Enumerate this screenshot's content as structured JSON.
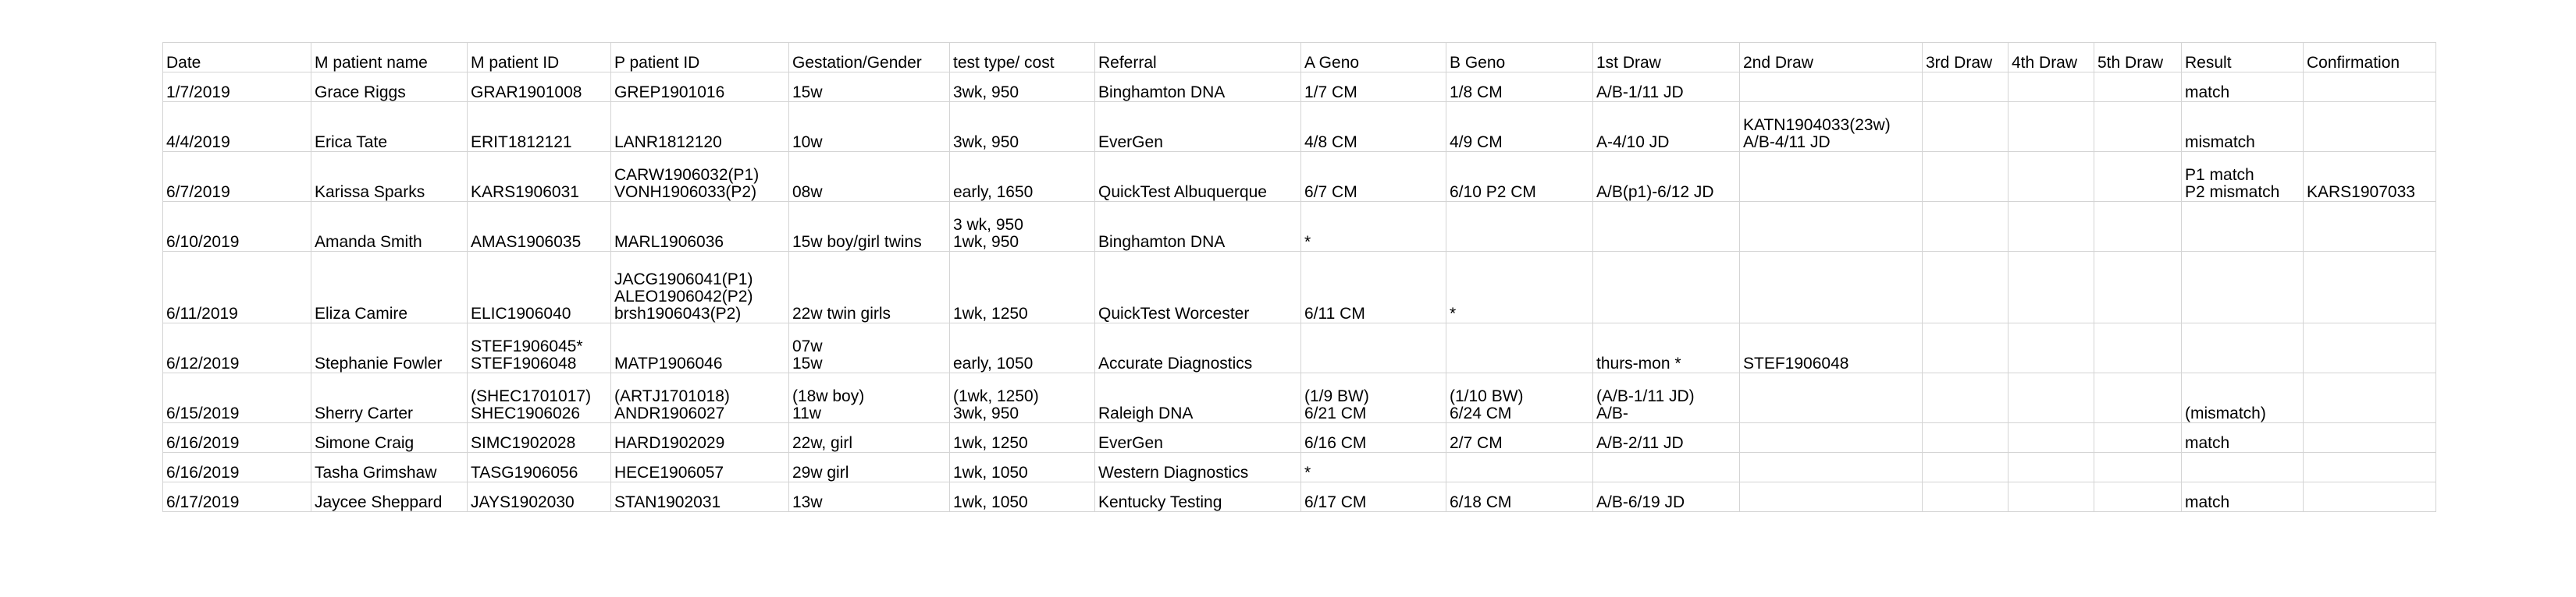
{
  "table": {
    "headers": [
      "Date",
      "M patient name",
      "M patient ID",
      "P patient ID",
      "Gestation/Gender",
      "test type/ cost",
      "Referral",
      "A Geno",
      "B Geno",
      "1st Draw",
      "2nd Draw",
      "3rd Draw",
      "4th Draw",
      "5th Draw",
      "Result",
      "Confirmation"
    ],
    "rows": [
      [
        "1/7/2019",
        "Grace Riggs",
        "GRAR1901008",
        "GREP1901016",
        "15w",
        "3wk, 950",
        "Binghamton DNA",
        "1/7 CM",
        "1/8 CM",
        "A/B-1/11 JD",
        "",
        "",
        "",
        "",
        "match",
        ""
      ],
      [
        "4/4/2019",
        "Erica Tate",
        "ERIT1812121",
        "LANR1812120\n",
        "10w",
        "3wk, 950",
        "EverGen",
        "4/8 CM",
        "4/9 CM",
        "A-4/10 JD",
        "KATN1904033(23w)\nA/B-4/11 JD",
        "",
        "",
        "",
        "mismatch",
        ""
      ],
      [
        "6/7/2019",
        "Karissa Sparks",
        "KARS1906031",
        "CARW1906032(P1)\nVONH1906033(P2)",
        "08w",
        "early, 1650",
        "QuickTest Albuquerque",
        "6/7 CM",
        "6/10 P2 CM",
        "A/B(p1)-6/12 JD\n",
        "",
        "",
        "",
        "",
        "P1 match\nP2 mismatch",
        "KARS1907033"
      ],
      [
        "6/10/2019",
        "Amanda Smith",
        "AMAS1906035",
        "MARL1906036",
        "15w boy/girl twins",
        "3 wk, 950\n1wk, 950",
        "Binghamton DNA",
        "*",
        "",
        "",
        "",
        "",
        "",
        "",
        "",
        ""
      ],
      [
        "6/11/2019",
        "Eliza Camire",
        "ELIC1906040",
        "JACG1906041(P1)\nALEO1906042(P2)\nbrsh1906043(P2)",
        "22w twin girls",
        "1wk, 1250",
        "QuickTest Worcester",
        "6/11 CM",
        "*",
        "",
        "",
        "",
        "",
        "",
        "",
        ""
      ],
      [
        "6/12/2019",
        "Stephanie Fowler",
        "STEF1906045*\nSTEF1906048",
        "MATP1906046",
        "07w\n15w",
        "early, 1050",
        "Accurate Diagnostics",
        "",
        "",
        "thurs-mon *",
        "STEF1906048",
        "",
        "",
        "",
        "",
        ""
      ],
      [
        "6/15/2019",
        "Sherry Carter",
        "(SHEC1701017)\nSHEC1906026",
        "(ARTJ1701018)\nANDR1906027",
        "(18w boy)\n11w",
        "(1wk, 1250)\n3wk, 950",
        "Raleigh DNA",
        "(1/9 BW)\n6/21 CM",
        "(1/10 BW)\n6/24 CM",
        "(A/B-1/11 JD)\nA/B-",
        "",
        "",
        "",
        "",
        "(mismatch)",
        ""
      ],
      [
        "6/16/2019",
        "Simone Craig",
        "SIMC1902028",
        "HARD1902029",
        "22w, girl",
        "1wk, 1250",
        "EverGen",
        "6/16 CM",
        "2/7 CM",
        "A/B-2/11 JD",
        "",
        "",
        "",
        "",
        "match",
        ""
      ],
      [
        "6/16/2019",
        "Tasha Grimshaw",
        "TASG1906056",
        "HECE1906057",
        "29w girl",
        "1wk, 1050",
        "Western Diagnostics",
        "*",
        "",
        "",
        "",
        "",
        "",
        "",
        "",
        ""
      ],
      [
        "6/17/2019",
        "Jaycee Sheppard",
        "JAYS1902030",
        "STAN1902031",
        "13w",
        "1wk, 1050",
        "Kentucky Testing",
        "6/17 CM",
        "6/18 CM",
        "A/B-6/19 JD",
        "",
        "",
        "",
        "",
        "match",
        ""
      ]
    ]
  }
}
